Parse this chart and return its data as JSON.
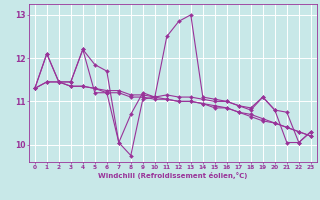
{
  "background_color": "#c8e8e8",
  "grid_color": "#ffffff",
  "line_color": "#993399",
  "marker": "D",
  "xlabel": "Windchill (Refroidissement éolien,°C)",
  "ylim": [
    9.6,
    13.25
  ],
  "xlim": [
    -0.5,
    23.5
  ],
  "yticks": [
    10,
    11,
    12,
    13
  ],
  "xticks": [
    0,
    1,
    2,
    3,
    4,
    5,
    6,
    7,
    8,
    9,
    10,
    11,
    12,
    13,
    14,
    15,
    16,
    17,
    18,
    19,
    20,
    21,
    22,
    23
  ],
  "series": [
    [
      11.3,
      12.1,
      11.45,
      11.45,
      12.2,
      11.85,
      11.7,
      10.05,
      9.75,
      11.05,
      11.1,
      12.5,
      12.85,
      13.0,
      11.1,
      11.05,
      11.0,
      10.9,
      10.85,
      11.1,
      10.8,
      10.05,
      10.05,
      10.3
    ],
    [
      11.3,
      12.1,
      11.45,
      11.45,
      12.2,
      11.2,
      11.2,
      10.05,
      10.7,
      11.2,
      11.1,
      11.15,
      11.1,
      11.1,
      11.05,
      11.0,
      11.0,
      10.9,
      10.8,
      11.1,
      10.8,
      10.75,
      10.05,
      10.3
    ],
    [
      11.3,
      11.45,
      11.45,
      11.35,
      11.35,
      11.3,
      11.25,
      11.25,
      11.15,
      11.15,
      11.1,
      11.05,
      11.0,
      11.0,
      10.95,
      10.9,
      10.85,
      10.75,
      10.7,
      10.6,
      10.5,
      10.4,
      10.3,
      10.2
    ],
    [
      11.3,
      11.45,
      11.45,
      11.35,
      11.35,
      11.3,
      11.2,
      11.2,
      11.1,
      11.1,
      11.05,
      11.05,
      11.0,
      11.0,
      10.95,
      10.85,
      10.85,
      10.75,
      10.65,
      10.55,
      10.5,
      10.4,
      10.3,
      10.2
    ]
  ]
}
